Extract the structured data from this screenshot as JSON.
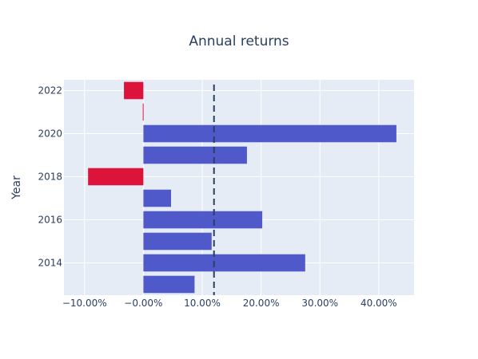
{
  "chart_data": {
    "type": "bar",
    "orientation": "horizontal",
    "title": "Annual returns",
    "xlabel": "",
    "ylabel": "Year",
    "categories": [
      2013,
      2014,
      2015,
      2016,
      2017,
      2018,
      2019,
      2020,
      2021,
      2022
    ],
    "values": [
      8.7,
      27.5,
      11.6,
      20.2,
      4.7,
      -9.4,
      17.6,
      43.0,
      -0.1,
      -3.3
    ],
    "xlim": [
      -13.5,
      46.0
    ],
    "ylim": [
      2012.5,
      2022.5
    ],
    "x_ticks": [
      -10,
      0,
      10,
      20,
      30,
      40
    ],
    "x_tick_labels": [
      "−10.00%",
      "−0.00%",
      "10.00%",
      "20.00%",
      "30.00%",
      "40.00%"
    ],
    "y_ticks": [
      2014,
      2016,
      2018,
      2020,
      2022
    ],
    "y_tick_labels": [
      "2014",
      "2016",
      "2018",
      "2020",
      "2022"
    ],
    "reference_line": {
      "x": 12.0,
      "style": "dashed",
      "color": "#2a3f5f"
    },
    "grid": true,
    "colors": {
      "positive": "#5059c9",
      "negative": "#dc143c",
      "plot_background": "#e5ecf6",
      "grid": "#ffffff",
      "text": "#2a3f5f"
    }
  }
}
